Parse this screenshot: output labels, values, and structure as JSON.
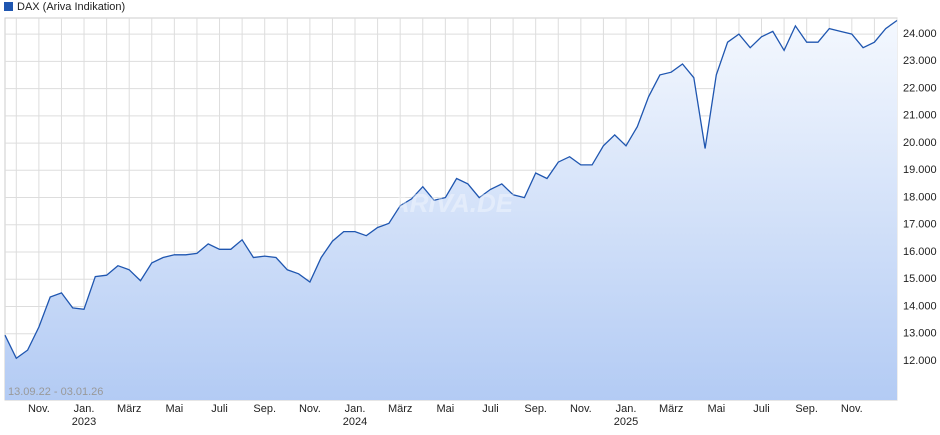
{
  "chart_data": {
    "type": "area",
    "date_range": "13.09.22 - 03.01.26",
    "watermark": "ARIVA.DE",
    "categories": [
      null,
      null,
      null,
      "Nov.",
      null,
      null,
      null,
      "Jan.",
      null,
      null,
      null,
      "März",
      null,
      null,
      null,
      "Mai",
      null,
      null,
      null,
      "Juli",
      null,
      null,
      null,
      "Sep.",
      null,
      null,
      null,
      "Nov.",
      null,
      null,
      null,
      "Jan.",
      null,
      null,
      null,
      "März",
      null,
      null,
      null,
      "Mai",
      null,
      null,
      null,
      "Juli",
      null,
      null,
      null,
      "Sep.",
      null,
      null,
      null,
      "Nov.",
      null,
      null,
      null,
      "Jan.",
      null,
      null,
      null,
      "März",
      null,
      null,
      null,
      "Mai",
      null,
      null,
      null,
      "Juli",
      null,
      null,
      null,
      "Sep.",
      null,
      null,
      null,
      "Nov.",
      null,
      null,
      null,
      null
    ],
    "year_labels": [
      {
        "at": 7,
        "label": "2023"
      },
      {
        "at": 31,
        "label": "2024"
      },
      {
        "at": 55,
        "label": "2025"
      }
    ],
    "series": [
      {
        "name": "DAX (Ariva Indikation)",
        "color": "#1f56b0",
        "values": [
          12950,
          12100,
          12400,
          13250,
          14350,
          14500,
          13950,
          13900,
          15100,
          15150,
          15500,
          15350,
          14950,
          15600,
          15800,
          15900,
          15900,
          15950,
          16300,
          16100,
          16100,
          16450,
          15800,
          15850,
          15800,
          15350,
          15200,
          14900,
          15800,
          16400,
          16750,
          16750,
          16600,
          16900,
          17050,
          17700,
          17950,
          18400,
          17900,
          18000,
          18700,
          18500,
          18000,
          18300,
          18500,
          18100,
          18000,
          18900,
          18700,
          19300,
          19500,
          19200,
          19200,
          19900,
          20300,
          19900,
          20600,
          21700,
          22500,
          22600,
          22900,
          22400,
          19800,
          22500,
          23700,
          24000,
          23500,
          23900,
          24100,
          23400,
          24300,
          23700,
          23700,
          24200,
          24100,
          24000,
          23500,
          23700,
          24200,
          24500
        ]
      }
    ],
    "ylim": [
      10570,
      24590
    ],
    "yticks": [
      {
        "value": 12000,
        "label": "12.000"
      },
      {
        "value": 13000,
        "label": "13.000"
      },
      {
        "value": 14000,
        "label": "14.000"
      },
      {
        "value": 15000,
        "label": "15.000"
      },
      {
        "value": 16000,
        "label": "16.000"
      },
      {
        "value": 17000,
        "label": "17.000"
      },
      {
        "value": 18000,
        "label": "18.000"
      },
      {
        "value": 19000,
        "label": "19.000"
      },
      {
        "value": 20000,
        "label": "20.000"
      },
      {
        "value": 21000,
        "label": "21.000"
      },
      {
        "value": 22000,
        "label": "22.000"
      },
      {
        "value": 23000,
        "label": "23.000"
      },
      {
        "value": 24000,
        "label": "24.000"
      }
    ],
    "grid": true
  }
}
